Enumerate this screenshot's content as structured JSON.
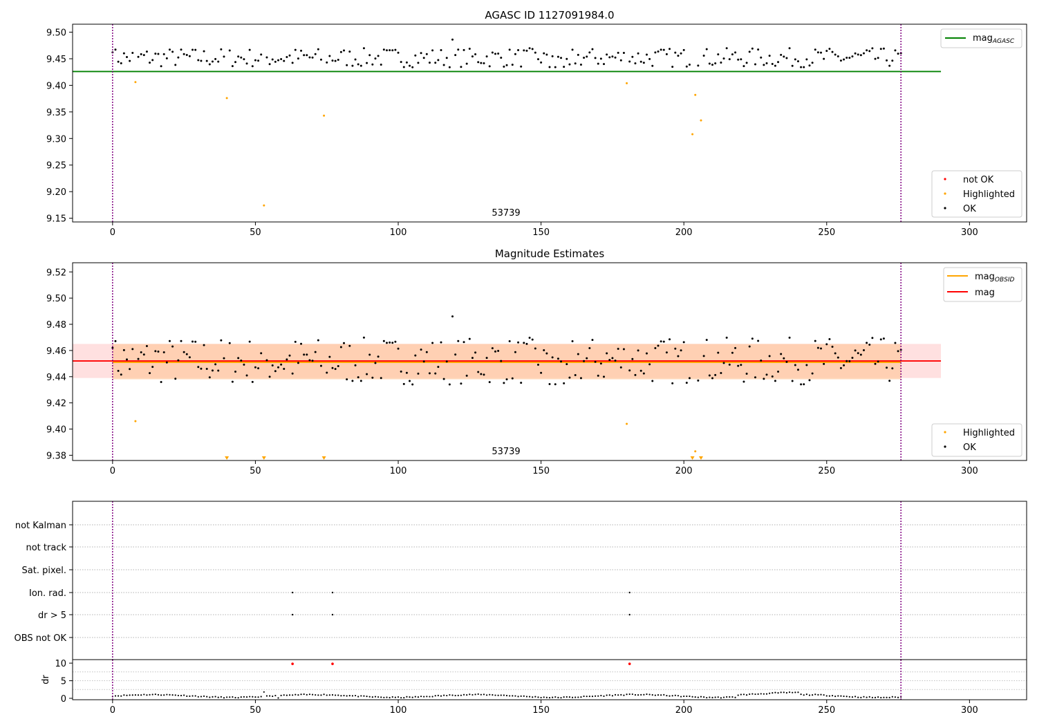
{
  "chart_data": [
    {
      "type": "scatter",
      "title": "AGASC ID 1127091984.0",
      "annotation": "53739",
      "xlim": [
        -14,
        320
      ],
      "ylim": [
        9.143,
        9.515
      ],
      "xticks": [
        0,
        50,
        100,
        150,
        200,
        250,
        300
      ],
      "yticks": [
        9.15,
        9.2,
        9.25,
        9.3,
        9.35,
        9.4,
        9.45,
        9.5
      ],
      "vlines": [
        0,
        276
      ],
      "hlines": [
        {
          "name": "mag_AGASC",
          "y": 9.426,
          "x": [
            -14,
            290
          ],
          "color": "#008000"
        }
      ],
      "highlighted": [
        [
          8,
          9.406
        ],
        [
          40,
          9.376
        ],
        [
          53,
          9.174
        ],
        [
          74,
          9.343
        ],
        [
          180,
          9.404
        ],
        [
          203,
          9.308
        ],
        [
          204,
          9.382
        ],
        [
          206,
          9.334
        ]
      ],
      "legend_lines": {
        "name": "mag",
        "sub": "AGASC"
      },
      "legend_points": [
        "not OK",
        "Highlighted",
        "OK"
      ],
      "colors": {
        "ok": "#000000",
        "highlighted": "#ffa500",
        "not_ok": "#ff0000",
        "agasc": "#008000"
      }
    },
    {
      "type": "scatter",
      "title": "Magnitude Estimates",
      "annotation": "53739",
      "xlim": [
        -14,
        320
      ],
      "ylim": [
        9.376,
        9.527
      ],
      "xticks": [
        0,
        50,
        100,
        150,
        200,
        250,
        300
      ],
      "yticks": [
        9.38,
        9.4,
        9.42,
        9.44,
        9.46,
        9.48,
        9.5,
        9.52
      ],
      "vlines": [
        0,
        276
      ],
      "mag": 9.452,
      "mag_obsid": 9.451,
      "band_mag": [
        9.439,
        9.465
      ],
      "band_obsid": [
        9.438,
        9.465
      ],
      "highlighted": [
        [
          8,
          9.406
        ],
        [
          180,
          9.404
        ],
        [
          204,
          9.383
        ]
      ],
      "markers_below": [
        40,
        53,
        74,
        203,
        206
      ],
      "legend_lines": [
        {
          "name": "mag",
          "sub": "OBSID",
          "color": "#ffa500"
        },
        {
          "name": "mag",
          "color": "#ff0000"
        }
      ],
      "legend_points": [
        "Highlighted",
        "OK"
      ]
    },
    {
      "type": "scatter",
      "title": "",
      "categories": [
        "not Kalman",
        "not track",
        "Sat. pixel.",
        "Ion. rad.",
        "dr > 5",
        "OBS not OK"
      ],
      "flags": {
        "Ion. rad.": [
          63,
          77,
          181
        ],
        "dr > 5": [
          63,
          77,
          181
        ]
      },
      "vlines": [
        0,
        276
      ]
    },
    {
      "type": "scatter",
      "title": "",
      "ylabel": "dr",
      "xlim": [
        -14,
        320
      ],
      "ylim": [
        -0.4,
        11
      ],
      "yticks": [
        0,
        5,
        10
      ],
      "xticks": [
        0,
        50,
        100,
        150,
        200,
        250,
        300
      ],
      "vlines": [
        0,
        276
      ],
      "red_points": [
        [
          63,
          9.8
        ],
        [
          77,
          9.8
        ],
        [
          181,
          9.8
        ]
      ]
    }
  ]
}
